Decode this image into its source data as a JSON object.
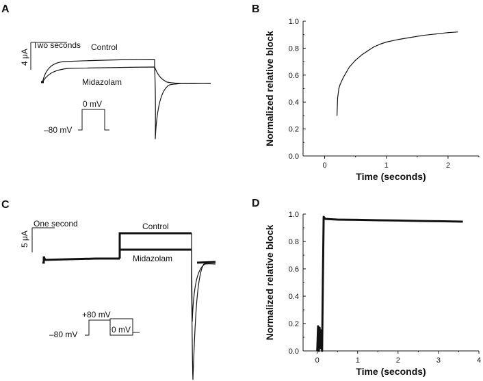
{
  "panels": {
    "A": {
      "letter": "A",
      "scale_time": "Two seconds",
      "scale_current": "4 μA",
      "control_label": "Control",
      "midazolam_label": "Midazolam",
      "protocol_hold": "–80 mV",
      "protocol_step": "0 mV"
    },
    "B": {
      "letter": "B"
    },
    "C": {
      "letter": "C",
      "scale_time": "One second",
      "scale_current": "5 μA",
      "control_label": "Control",
      "midazolam_label": "Midazolam",
      "protocol_hold": "–80 mV",
      "protocol_step1": "+80 mV",
      "protocol_step2": "0 mV"
    },
    "D": {
      "letter": "D"
    }
  },
  "chart_data": [
    {
      "panel": "B",
      "type": "line",
      "title": "",
      "xlabel": "Time (seconds)",
      "ylabel": "Normalized relative block",
      "xlim": [
        -0.35,
        2.5
      ],
      "ylim": [
        0,
        1.0
      ],
      "xticks": [
        0,
        1,
        2
      ],
      "xtick_labels": [
        "0",
        "1",
        "2"
      ],
      "yticks": [
        0,
        0.2,
        0.4,
        0.6,
        0.8,
        1.0
      ],
      "ytick_labels": [
        "0.0",
        "0.2",
        "0.4",
        "0.6",
        "0.8",
        "1.0"
      ],
      "series": [
        {
          "x": [
            0.2,
            0.21,
            0.23,
            0.25,
            0.3,
            0.35,
            0.4,
            0.5,
            0.6,
            0.7,
            0.8,
            0.9,
            1.0,
            1.2,
            1.4,
            1.6,
            1.8,
            2.0,
            2.15
          ],
          "y": [
            0.3,
            0.43,
            0.5,
            0.53,
            0.58,
            0.62,
            0.66,
            0.71,
            0.75,
            0.78,
            0.81,
            0.83,
            0.845,
            0.865,
            0.88,
            0.895,
            0.905,
            0.915,
            0.92
          ]
        }
      ]
    },
    {
      "panel": "D",
      "type": "line",
      "title": "",
      "xlabel": "Time (seconds)",
      "ylabel": "Normalized relative block",
      "xlim": [
        -0.35,
        4.0
      ],
      "ylim": [
        0,
        1.0
      ],
      "xticks": [
        0,
        1,
        2,
        3,
        4
      ],
      "xtick_labels": [
        "0",
        "1",
        "2",
        "3",
        "4"
      ],
      "yticks": [
        0,
        0.2,
        0.4,
        0.6,
        0.8,
        1.0
      ],
      "ytick_labels": [
        "0.0",
        "0.2",
        "0.4",
        "0.6",
        "0.8",
        "1.0"
      ],
      "series": [
        {
          "x": [
            0.0,
            0.02,
            0.04,
            0.06,
            0.08,
            0.1,
            0.12,
            0.14,
            0.16,
            0.2,
            0.3,
            0.5,
            1.0,
            1.5,
            2.0,
            2.5,
            3.0,
            3.6
          ],
          "y": [
            0.0,
            0.18,
            0.0,
            0.17,
            0.02,
            0.15,
            0.0,
            0.5,
            0.98,
            0.965,
            0.963,
            0.96,
            0.958,
            0.955,
            0.953,
            0.95,
            0.948,
            0.945
          ]
        }
      ]
    }
  ]
}
